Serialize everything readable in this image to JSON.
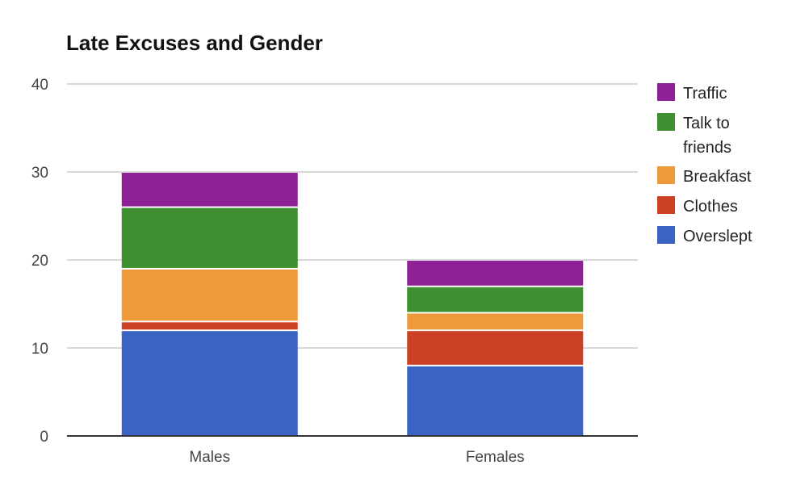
{
  "chart_data": {
    "type": "bar",
    "stacked": true,
    "title": "Late Excuses and Gender",
    "xlabel": "",
    "ylabel": "",
    "ylim": [
      0,
      40
    ],
    "yticks": [
      0,
      10,
      20,
      30,
      40
    ],
    "grid": true,
    "legend_position": "right",
    "categories": [
      "Males",
      "Females"
    ],
    "series": [
      {
        "name": "Overslept",
        "color": "#3a63c4",
        "values": [
          12,
          8
        ]
      },
      {
        "name": "Clothes",
        "color": "#cc4125",
        "values": [
          1,
          4
        ]
      },
      {
        "name": "Breakfast",
        "color": "#ee9a3a",
        "values": [
          6,
          2
        ]
      },
      {
        "name": "Talk to friends",
        "color": "#3d8f2f",
        "values": [
          7,
          3
        ]
      },
      {
        "name": "Traffic",
        "color": "#8e2196",
        "values": [
          4,
          3
        ]
      }
    ]
  }
}
